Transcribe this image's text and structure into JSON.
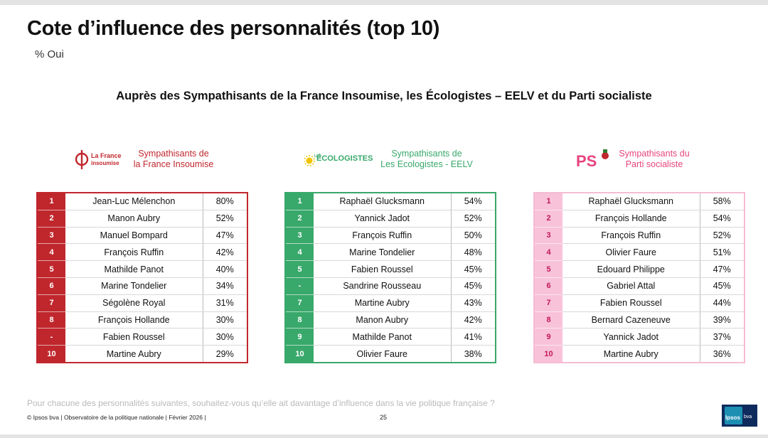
{
  "page": {
    "title": "Cote d’influence des personnalités (top 10)",
    "subtitle": "% Oui",
    "heading": "Auprès des Sympathisants de la France Insoumise, les Écologistes – EELV et du Parti socialiste"
  },
  "groups": [
    {
      "logo_text": [
        "La France",
        "insoumise"
      ],
      "label_lines": [
        "Sympathisants de",
        "la France Insoumise"
      ],
      "color": "#c0272d",
      "rows": [
        {
          "rank": "1",
          "name": "Jean-Luc Mélenchon",
          "pct": "80%"
        },
        {
          "rank": "2",
          "name": "Manon Aubry",
          "pct": "52%"
        },
        {
          "rank": "3",
          "name": "Manuel Bompard",
          "pct": "47%"
        },
        {
          "rank": "4",
          "name": "François Ruffin",
          "pct": "42%"
        },
        {
          "rank": "5",
          "name": "Mathilde Panot",
          "pct": "40%"
        },
        {
          "rank": "6",
          "name": "Marine Tondelier",
          "pct": "34%"
        },
        {
          "rank": "7",
          "name": "Ségolène Royal",
          "pct": "31%"
        },
        {
          "rank": "8",
          "name": "François Hollande",
          "pct": "30%"
        },
        {
          "rank": "-",
          "name": "Fabien Roussel",
          "pct": "30%"
        },
        {
          "rank": "10",
          "name": "Martine Aubry",
          "pct": "29%"
        }
      ]
    },
    {
      "logo_text": [
        "LES",
        "ÉCOLOGISTES"
      ],
      "label_lines": [
        "Sympathisants de",
        "Les Ecologistes - EELV"
      ],
      "color": "#39a86b",
      "rows": [
        {
          "rank": "1",
          "name": "Raphaël Glucksmann",
          "pct": "54%"
        },
        {
          "rank": "2",
          "name": "Yannick Jadot",
          "pct": "52%"
        },
        {
          "rank": "3",
          "name": "François Ruffin",
          "pct": "50%"
        },
        {
          "rank": "4",
          "name": "Marine Tondelier",
          "pct": "48%"
        },
        {
          "rank": "5",
          "name": "Fabien Roussel",
          "pct": "45%"
        },
        {
          "rank": "-",
          "name": "Sandrine Rousseau",
          "pct": "45%"
        },
        {
          "rank": "7",
          "name": "Martine Aubry",
          "pct": "43%"
        },
        {
          "rank": "8",
          "name": "Manon Aubry",
          "pct": "42%"
        },
        {
          "rank": "9",
          "name": "Mathilde Panot",
          "pct": "41%"
        },
        {
          "rank": "10",
          "name": "Olivier Faure",
          "pct": "38%"
        }
      ]
    },
    {
      "logo_text": [
        "PS"
      ],
      "label_lines": [
        "Sympathisants du",
        "Parti socialiste"
      ],
      "color": "#e7457f",
      "rows": [
        {
          "rank": "1",
          "name": "Raphaël Glucksmann",
          "pct": "58%"
        },
        {
          "rank": "2",
          "name": "François Hollande",
          "pct": "54%"
        },
        {
          "rank": "3",
          "name": "François Ruffin",
          "pct": "52%"
        },
        {
          "rank": "4",
          "name": "Olivier Faure",
          "pct": "51%"
        },
        {
          "rank": "5",
          "name": "Edouard Philippe",
          "pct": "47%"
        },
        {
          "rank": "6",
          "name": "Gabriel Attal",
          "pct": "45%"
        },
        {
          "rank": "7",
          "name": "Fabien Roussel",
          "pct": "44%"
        },
        {
          "rank": "8",
          "name": "Bernard Cazeneuve",
          "pct": "39%"
        },
        {
          "rank": "9",
          "name": "Yannick Jadot",
          "pct": "37%"
        },
        {
          "rank": "10",
          "name": "Martine Aubry",
          "pct": "36%"
        }
      ]
    }
  ],
  "footer": {
    "question": "Pour chacune des personnalités suivantes, souhaitez-vous qu’elle ait davantage d’influence dans la vie politique française ?",
    "source": "© Ipsos bva | Observatoire de la politique nationale | Février 2026 |",
    "page_number": "25",
    "brand_ipsos": "Ipsos",
    "brand_bva": "bva"
  }
}
